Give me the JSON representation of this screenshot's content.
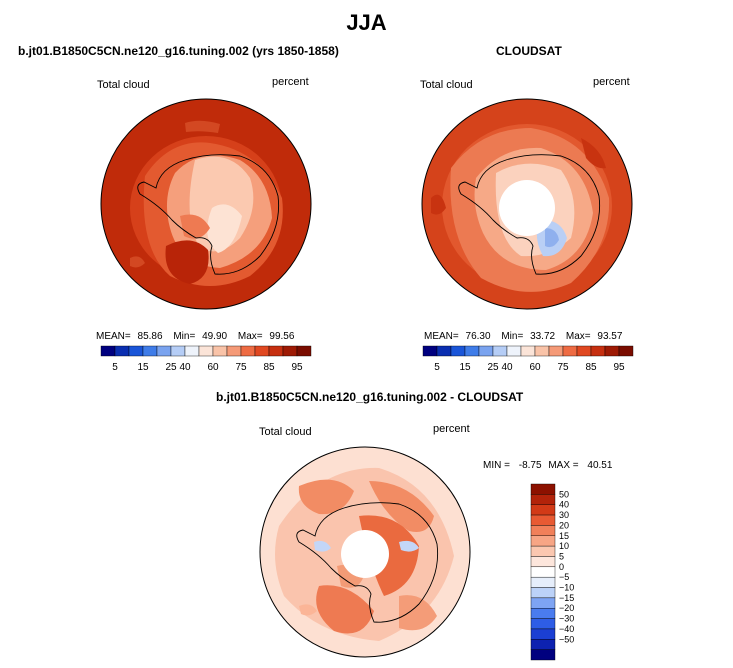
{
  "main_title": "JJA",
  "panels": [
    {
      "subtitle": "b.jt01.B1850C5CN.ne120_g16.tuning.002 (yrs 1850-1858)",
      "left_label": "Total cloud",
      "right_label": "percent",
      "stats": {
        "mean_label": "MEAN=",
        "mean": "85.86",
        "min_label": "Min=",
        "min": "49.90",
        "max_label": "Max=",
        "max": "99.56"
      }
    },
    {
      "subtitle": "CLOUDSAT",
      "left_label": "Total cloud",
      "right_label": "percent",
      "stats": {
        "mean_label": "MEAN=",
        "mean": "76.30",
        "min_label": "Min=",
        "min": "33.72",
        "max_label": "Max=",
        "max": "93.57"
      }
    },
    {
      "subtitle": "b.jt01.B1850C5CN.ne120_g16.tuning.002 - CLOUDSAT",
      "left_label": "Total cloud",
      "right_label": "percent",
      "stats": {
        "min_label": "MIN =",
        "min": "-8.75",
        "max_label": "MAX =",
        "max": "40.51"
      }
    }
  ],
  "colorbar_abs": {
    "colors": [
      "#00007f",
      "#0a2eb0",
      "#1a55d8",
      "#3f7ce8",
      "#7aa3ef",
      "#b5cdf6",
      "#eef3fb",
      "#fbe4d8",
      "#f9c3a8",
      "#f59a77",
      "#ee6b43",
      "#e04821",
      "#c62f10",
      "#9e1a04",
      "#7a0c00"
    ],
    "tick_labels": [
      "5",
      "15",
      "25",
      "40",
      "60",
      "75",
      "85",
      "95"
    ]
  },
  "colorbar_diff": {
    "colors": [
      "#00007f",
      "#0d22b0",
      "#1b3fd3",
      "#2e5de6",
      "#4a7cef",
      "#7ea4f3",
      "#bcd2f8",
      "#e6eefb",
      "#ffffff",
      "#fde6dc",
      "#fbc7b0",
      "#f7a585",
      "#f1805a",
      "#e85a33",
      "#d23a17",
      "#b2230a",
      "#8c1100"
    ],
    "tick_labels": [
      "50",
      "40",
      "30",
      "20",
      "15",
      "10",
      "5",
      "0",
      "−5",
      "−10",
      "−15",
      "−20",
      "−30",
      "−40",
      "−50"
    ]
  }
}
